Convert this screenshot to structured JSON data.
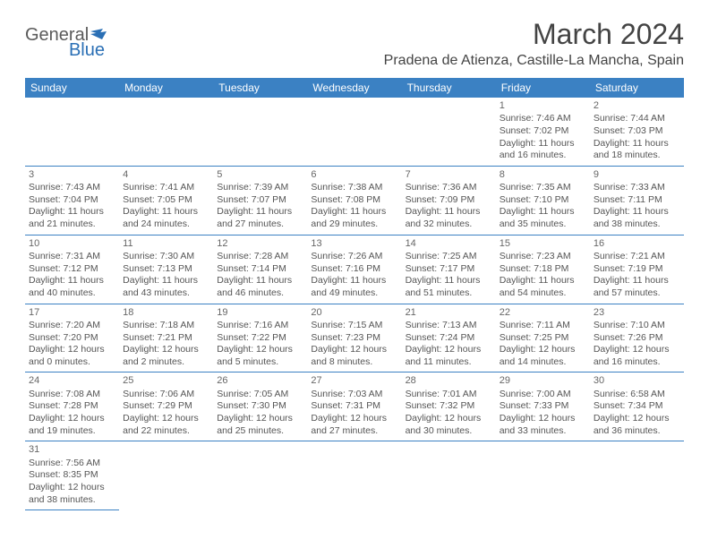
{
  "brand": {
    "part1": "General",
    "part2": "Blue"
  },
  "title": {
    "month": "March 2024",
    "location": "Pradena de Atienza, Castille-La Mancha, Spain"
  },
  "colors": {
    "header_bg": "#3b81c3",
    "rule": "#3b81c3",
    "brand_blue": "#2a6fb5",
    "text": "#555"
  },
  "layout": {
    "aspect": "792x612",
    "columns": 7,
    "rows": 6
  },
  "weekdays": [
    "Sunday",
    "Monday",
    "Tuesday",
    "Wednesday",
    "Thursday",
    "Friday",
    "Saturday"
  ],
  "cells": [
    null,
    null,
    null,
    null,
    null,
    {
      "day": "1",
      "sunrise": "7:46 AM",
      "sunset": "7:02 PM",
      "daylight": "11 hours and 16 minutes."
    },
    {
      "day": "2",
      "sunrise": "7:44 AM",
      "sunset": "7:03 PM",
      "daylight": "11 hours and 18 minutes."
    },
    {
      "day": "3",
      "sunrise": "7:43 AM",
      "sunset": "7:04 PM",
      "daylight": "11 hours and 21 minutes."
    },
    {
      "day": "4",
      "sunrise": "7:41 AM",
      "sunset": "7:05 PM",
      "daylight": "11 hours and 24 minutes."
    },
    {
      "day": "5",
      "sunrise": "7:39 AM",
      "sunset": "7:07 PM",
      "daylight": "11 hours and 27 minutes."
    },
    {
      "day": "6",
      "sunrise": "7:38 AM",
      "sunset": "7:08 PM",
      "daylight": "11 hours and 29 minutes."
    },
    {
      "day": "7",
      "sunrise": "7:36 AM",
      "sunset": "7:09 PM",
      "daylight": "11 hours and 32 minutes."
    },
    {
      "day": "8",
      "sunrise": "7:35 AM",
      "sunset": "7:10 PM",
      "daylight": "11 hours and 35 minutes."
    },
    {
      "day": "9",
      "sunrise": "7:33 AM",
      "sunset": "7:11 PM",
      "daylight": "11 hours and 38 minutes."
    },
    {
      "day": "10",
      "sunrise": "7:31 AM",
      "sunset": "7:12 PM",
      "daylight": "11 hours and 40 minutes."
    },
    {
      "day": "11",
      "sunrise": "7:30 AM",
      "sunset": "7:13 PM",
      "daylight": "11 hours and 43 minutes."
    },
    {
      "day": "12",
      "sunrise": "7:28 AM",
      "sunset": "7:14 PM",
      "daylight": "11 hours and 46 minutes."
    },
    {
      "day": "13",
      "sunrise": "7:26 AM",
      "sunset": "7:16 PM",
      "daylight": "11 hours and 49 minutes."
    },
    {
      "day": "14",
      "sunrise": "7:25 AM",
      "sunset": "7:17 PM",
      "daylight": "11 hours and 51 minutes."
    },
    {
      "day": "15",
      "sunrise": "7:23 AM",
      "sunset": "7:18 PM",
      "daylight": "11 hours and 54 minutes."
    },
    {
      "day": "16",
      "sunrise": "7:21 AM",
      "sunset": "7:19 PM",
      "daylight": "11 hours and 57 minutes."
    },
    {
      "day": "17",
      "sunrise": "7:20 AM",
      "sunset": "7:20 PM",
      "daylight": "12 hours and 0 minutes."
    },
    {
      "day": "18",
      "sunrise": "7:18 AM",
      "sunset": "7:21 PM",
      "daylight": "12 hours and 2 minutes."
    },
    {
      "day": "19",
      "sunrise": "7:16 AM",
      "sunset": "7:22 PM",
      "daylight": "12 hours and 5 minutes."
    },
    {
      "day": "20",
      "sunrise": "7:15 AM",
      "sunset": "7:23 PM",
      "daylight": "12 hours and 8 minutes."
    },
    {
      "day": "21",
      "sunrise": "7:13 AM",
      "sunset": "7:24 PM",
      "daylight": "12 hours and 11 minutes."
    },
    {
      "day": "22",
      "sunrise": "7:11 AM",
      "sunset": "7:25 PM",
      "daylight": "12 hours and 14 minutes."
    },
    {
      "day": "23",
      "sunrise": "7:10 AM",
      "sunset": "7:26 PM",
      "daylight": "12 hours and 16 minutes."
    },
    {
      "day": "24",
      "sunrise": "7:08 AM",
      "sunset": "7:28 PM",
      "daylight": "12 hours and 19 minutes."
    },
    {
      "day": "25",
      "sunrise": "7:06 AM",
      "sunset": "7:29 PM",
      "daylight": "12 hours and 22 minutes."
    },
    {
      "day": "26",
      "sunrise": "7:05 AM",
      "sunset": "7:30 PM",
      "daylight": "12 hours and 25 minutes."
    },
    {
      "day": "27",
      "sunrise": "7:03 AM",
      "sunset": "7:31 PM",
      "daylight": "12 hours and 27 minutes."
    },
    {
      "day": "28",
      "sunrise": "7:01 AM",
      "sunset": "7:32 PM",
      "daylight": "12 hours and 30 minutes."
    },
    {
      "day": "29",
      "sunrise": "7:00 AM",
      "sunset": "7:33 PM",
      "daylight": "12 hours and 33 minutes."
    },
    {
      "day": "30",
      "sunrise": "6:58 AM",
      "sunset": "7:34 PM",
      "daylight": "12 hours and 36 minutes."
    },
    {
      "day": "31",
      "sunrise": "7:56 AM",
      "sunset": "8:35 PM",
      "daylight": "12 hours and 38 minutes."
    },
    null,
    null,
    null,
    null,
    null,
    null
  ]
}
